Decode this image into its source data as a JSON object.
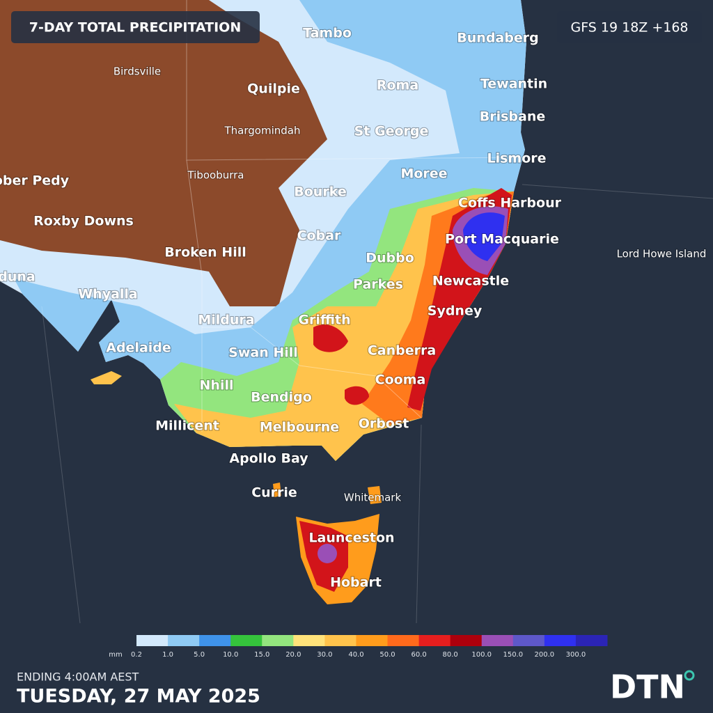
{
  "header": {
    "title": "7-DAY TOTAL PRECIPITATION",
    "model": "GFS 19 18Z +168"
  },
  "places": [
    "Tambo",
    "Bundaberg",
    "Birdsville",
    "Quilpie",
    "Roma",
    "Tewantin",
    "Brisbane",
    "Thargomindah",
    "St George",
    "Moree",
    "Lismore",
    "ober Pedy",
    "Tibooburra",
    "Bourke",
    "Coffs Harbour",
    "Roxby Downs",
    "Cobar",
    "Port Macquarie",
    "Broken Hill",
    "Lord Howe Island",
    "Dubbo",
    "duna",
    "Newcastle",
    "Parkes",
    "Whyalla",
    "Sydney",
    "Mildura",
    "Griffith",
    "Adelaide",
    "Swan Hill",
    "Canberra",
    "Cooma",
    "Nhill",
    "Bendigo",
    "Millicent",
    "Orbost",
    "Melbourne",
    "Apollo Bay",
    "Currie",
    "Whitemark",
    "Launceston",
    "Hobart"
  ],
  "legend": {
    "unit": "mm",
    "labels": [
      "0.2",
      "1.0",
      "5.0",
      "10.0",
      "15.0",
      "20.0",
      "30.0",
      "40.0",
      "50.0",
      "60.0",
      "80.0",
      "100.0",
      "150.0",
      "200.0",
      "300.0"
    ],
    "colors": [
      "#d3e9fc",
      "#8fcaf4",
      "#3f93ea",
      "#35c43c",
      "#93e57e",
      "#ffe27a",
      "#ffc34c",
      "#ff9c1c",
      "#ff6a1c",
      "#e61e1e",
      "#ad000c",
      "#9a4fb6",
      "#5e58c9",
      "#2f30f0",
      "#2b24b5"
    ]
  },
  "footer": {
    "ending": "ENDING 4:00AM AEST",
    "date": "TUESDAY, 27 MAY 2025"
  },
  "logo": "DTN"
}
